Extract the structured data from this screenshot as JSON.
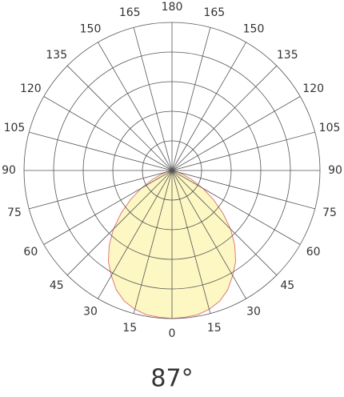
{
  "chart_data": {
    "type": "polar",
    "annotation": "87°",
    "angle_ticks": [
      0,
      15,
      30,
      45,
      60,
      75,
      90,
      105,
      120,
      135,
      150,
      165,
      180
    ],
    "rlim": [
      0,
      100
    ],
    "rticks": [
      20,
      40,
      60,
      80,
      100
    ],
    "x": [
      -90,
      -85,
      -80,
      -75,
      -70,
      -65,
      -60,
      -55,
      -50,
      -45,
      -40,
      -35,
      -30,
      -25,
      -20,
      -15,
      -10,
      -5,
      0,
      5,
      10,
      15,
      20,
      25,
      30,
      35,
      40,
      45,
      50,
      55,
      60,
      65,
      70,
      75,
      80,
      85,
      90
    ],
    "series": [
      {
        "fill": "#fdf7c3",
        "color": "#e07a7a",
        "values": [
          0,
          1,
          2,
          4,
          8,
          15,
          24,
          34,
          45,
          56,
          66,
          75,
          82,
          89,
          94,
          97,
          99,
          99.5,
          100,
          99.5,
          99,
          97,
          94,
          89,
          82,
          75,
          66,
          56,
          45,
          34,
          24,
          15,
          8,
          4,
          2,
          1,
          0
        ]
      }
    ]
  }
}
